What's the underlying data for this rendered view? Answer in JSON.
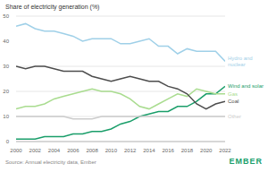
{
  "chart_data": {
    "type": "line",
    "title": "Share of electricity generation (%)",
    "source": "Source: Annual electricity data, Ember",
    "brand": "EMBER",
    "x": [
      2000,
      2001,
      2002,
      2003,
      2004,
      2005,
      2006,
      2007,
      2008,
      2009,
      2010,
      2011,
      2012,
      2013,
      2014,
      2015,
      2016,
      2017,
      2018,
      2019,
      2020,
      2021,
      2022
    ],
    "xlim": [
      2000,
      2022
    ],
    "xticks": [
      2000,
      2002,
      2004,
      2006,
      2008,
      2010,
      2012,
      2014,
      2016,
      2018,
      2020,
      2022
    ],
    "ylim": [
      0,
      50
    ],
    "yticks": [
      0,
      10,
      20,
      30,
      40,
      50
    ],
    "grid": true,
    "series": [
      {
        "name": "Hydro and nuclear",
        "color": "#9fd0e8",
        "values": [
          46,
          47,
          45,
          44,
          44,
          43,
          42,
          40,
          41,
          41,
          41,
          39,
          39,
          40,
          41,
          38,
          38,
          35,
          37,
          36,
          36,
          36,
          32
        ]
      },
      {
        "name": "Wind and solar",
        "color": "#1a9e6a",
        "values": [
          1,
          1,
          1,
          2,
          2,
          2,
          3,
          3,
          4,
          4,
          5,
          7,
          8,
          10,
          11,
          12,
          12,
          14,
          14,
          16,
          19,
          19,
          22
        ]
      },
      {
        "name": "Gas",
        "color": "#a9dc8f",
        "values": [
          13,
          14,
          14,
          15,
          17,
          18,
          19,
          20,
          21,
          20,
          20,
          19,
          17,
          14,
          13,
          15,
          17,
          19,
          18,
          21,
          20,
          19,
          19
        ]
      },
      {
        "name": "Coal",
        "color": "#4d4d4d",
        "values": [
          30,
          29,
          30,
          30,
          29,
          28,
          28,
          28,
          26,
          25,
          24,
          25,
          26,
          25,
          24,
          24,
          22,
          21,
          19,
          15,
          13,
          15,
          16
        ]
      },
      {
        "name": "Other",
        "color": "#cccccc",
        "values": [
          10,
          10,
          10,
          10,
          10,
          10,
          9,
          9,
          9,
          10,
          10,
          10,
          10,
          10,
          10,
          10,
          10,
          10,
          10,
          10,
          10,
          10,
          10
        ]
      }
    ]
  }
}
